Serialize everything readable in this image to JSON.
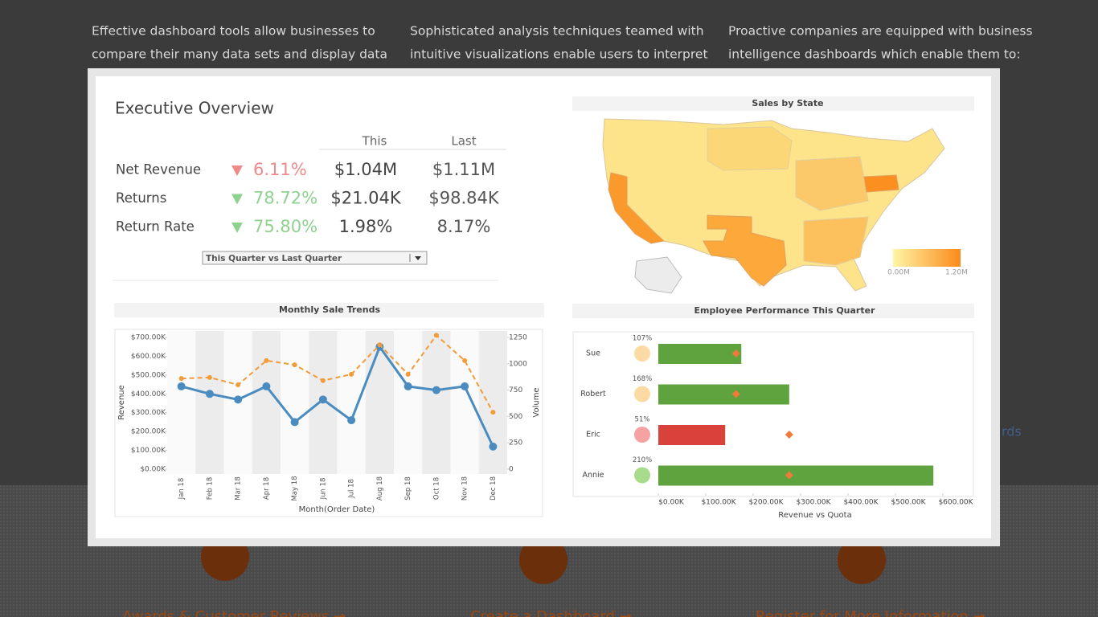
{
  "background": {
    "columns": [
      [
        "Effective dashboard tools allow businesses to",
        "compare their many data sets and display data"
      ],
      [
        "Sophisticated analysis techniques teamed with",
        "intuitive visualizations enable users to interpret"
      ],
      [
        "Proactive companies are equipped with business",
        "intelligence dashboards which enable them to:"
      ]
    ],
    "side_text": "rds",
    "links": [
      "Awards & Customer Reviews →",
      "Create a Dashboard →",
      "Register for More Information →"
    ]
  },
  "overview": {
    "title": "Executive Overview",
    "headers": [
      "This",
      "Last"
    ],
    "rows": [
      {
        "label": "Net Revenue",
        "change": "6.11%",
        "this": "$1.04M",
        "last": "$1.11M",
        "color": "#f08a8a"
      },
      {
        "label": "Returns",
        "change": "78.72%",
        "this": "$21.04K",
        "last": "$98.84K",
        "color": "#8fd18f"
      },
      {
        "label": "Return Rate",
        "change": "75.80%",
        "this": "1.98%",
        "last": "8.17%",
        "color": "#8fd18f"
      }
    ],
    "dropdown": "This Quarter vs Last Quarter"
  },
  "map": {
    "title": "Sales by State",
    "legend": [
      "0.00M",
      "1.20M"
    ]
  },
  "chart_data": [
    {
      "type": "line",
      "title": "Monthly Sale Trends",
      "x_label": "Month(Order Date)",
      "categories": [
        "Jan 18",
        "Feb 18",
        "Mar 18",
        "Apr 18",
        "May 18",
        "Jun 18",
        "Jul 18",
        "Aug 18",
        "Sep 18",
        "Oct 18",
        "Nov 18",
        "Dec 18"
      ],
      "series": [
        {
          "name": "Revenue",
          "color": "#4a8bc0",
          "values": [
            440000,
            400000,
            370000,
            440000,
            250000,
            370000,
            260000,
            650000,
            440000,
            420000,
            440000,
            120000
          ]
        },
        {
          "name": "Volume",
          "color": "#f29b38",
          "axis": "y2",
          "dashed": true,
          "values": [
            860,
            870,
            800,
            1030,
            990,
            840,
            900,
            1180,
            900,
            1270,
            1030,
            540
          ]
        }
      ],
      "ylim": [
        0,
        700000
      ],
      "yticks": [
        {
          "value": 0,
          "label": "$0.00K"
        },
        {
          "value": 100000,
          "label": "$100.00K"
        },
        {
          "value": 200000,
          "label": "$200.00K"
        },
        {
          "value": 300000,
          "label": "$300.00K"
        },
        {
          "value": 400000,
          "label": "$400.00K"
        },
        {
          "value": 500000,
          "label": "$500.00K"
        },
        {
          "value": 600000,
          "label": "$600.00K"
        },
        {
          "value": 700000,
          "label": "$700.00K"
        }
      ],
      "y2lim": [
        0,
        1250
      ],
      "y2ticks": [
        0,
        250,
        500,
        750,
        1000,
        1250
      ]
    },
    {
      "type": "bar",
      "orientation": "horizontal",
      "title": "Employee Performance This Quarter",
      "x_label": "Revenue vs Quota",
      "categories": [
        "Sue",
        "Robert",
        "Eric",
        "Annie"
      ],
      "values": [
        175000,
        276000,
        141000,
        580000
      ],
      "colors": [
        "#5ea33e",
        "#5ea33e",
        "#d9413b",
        "#5ea33e"
      ],
      "quota": [
        164000,
        164000,
        276000,
        276000
      ],
      "quota_color": "#f07a3a",
      "attainment": [
        107,
        168,
        51,
        210
      ],
      "attainment_labels": [
        "107%",
        "168%",
        "51%",
        "210%"
      ],
      "attainment_colors": [
        "#fbdba3",
        "#fbdba3",
        "#f6a2a2",
        "#a9db8c"
      ],
      "xlim": [
        0,
        600000
      ],
      "xticks": [
        {
          "value": 0,
          "label": "$0.00K"
        },
        {
          "value": 100000,
          "label": "$100.00K"
        },
        {
          "value": 200000,
          "label": "$200.00K"
        },
        {
          "value": 300000,
          "label": "$300.00K"
        },
        {
          "value": 400000,
          "label": "$400.00K"
        },
        {
          "value": 500000,
          "label": "$500.00K"
        },
        {
          "value": 600000,
          "label": "$600.00K"
        }
      ]
    }
  ]
}
